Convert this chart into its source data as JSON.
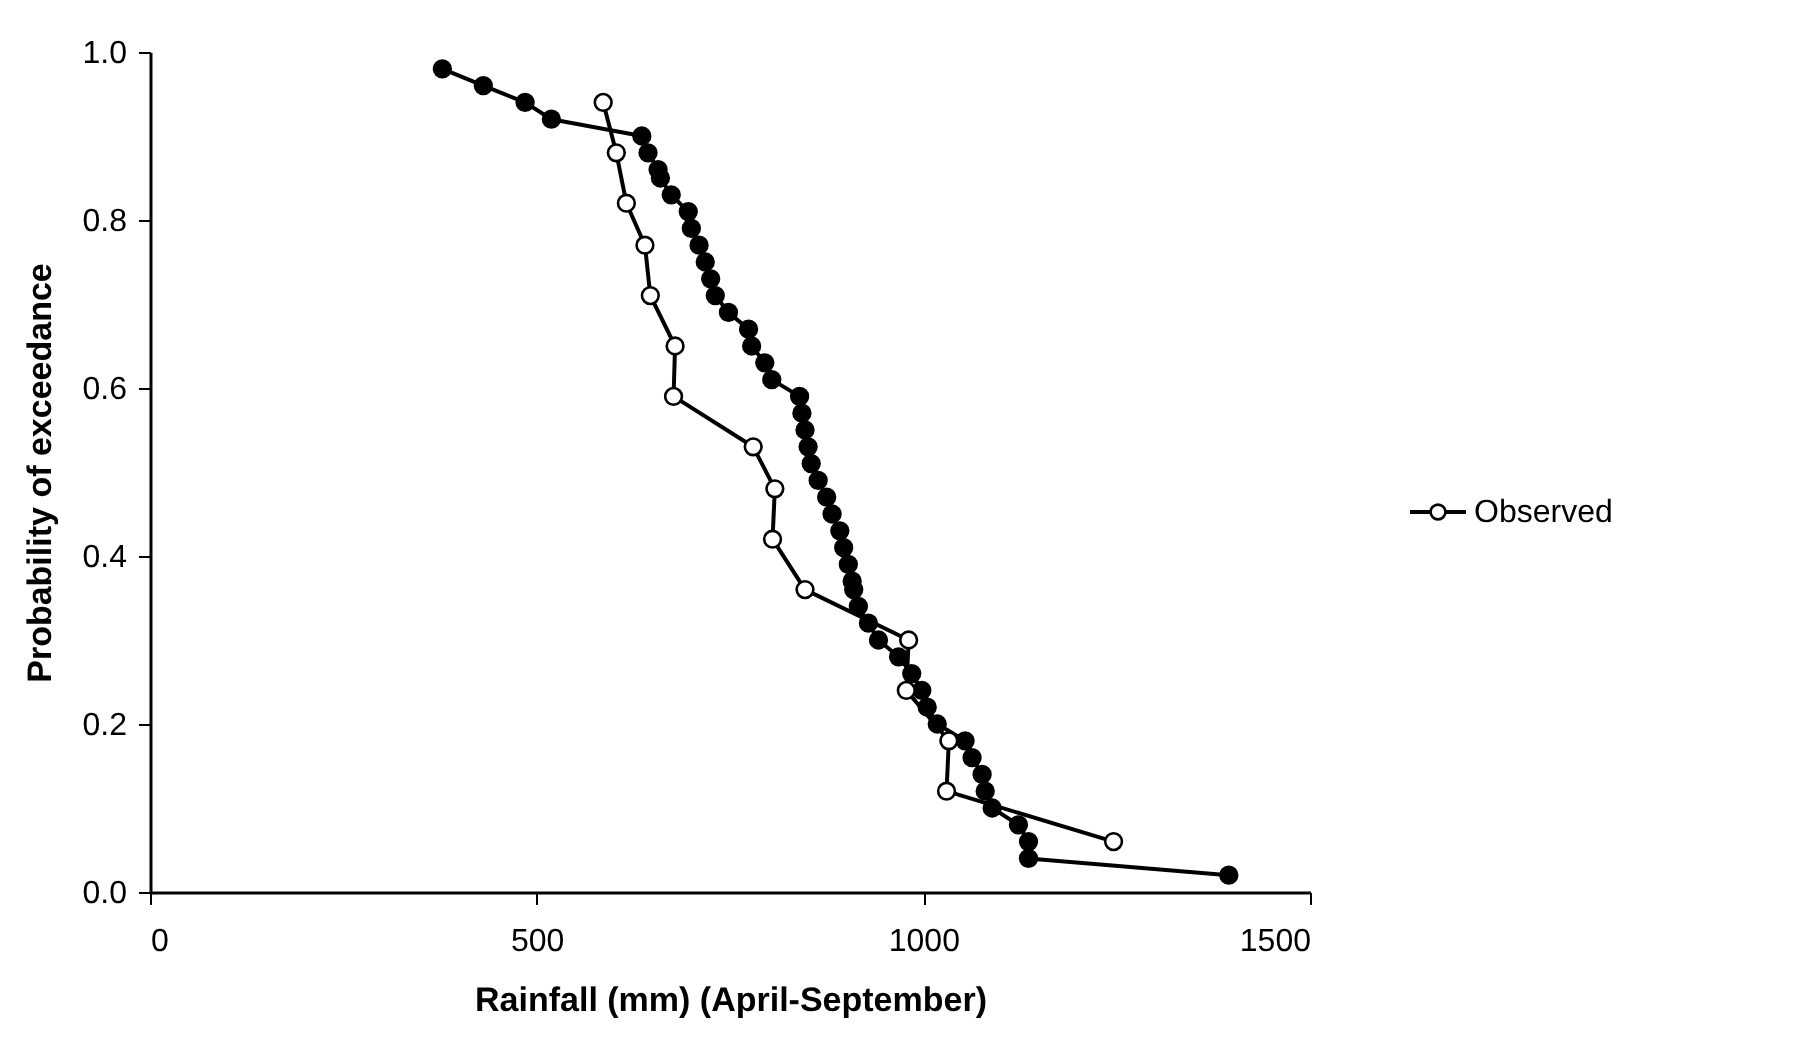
{
  "chart_data": {
    "type": "line",
    "xlabel": "Rainfall  (mm)  (April-September)",
    "ylabel": "Probability of exceedance",
    "xlim": [
      0,
      1500
    ],
    "xticks": [
      0,
      500,
      1000,
      1500
    ],
    "ylim": [
      0,
      1
    ],
    "yticks": [
      {
        "value": 0,
        "label": "0.0"
      },
      {
        "value": 0.2,
        "label": "0.2"
      },
      {
        "value": 0.4,
        "label": "0.4"
      },
      {
        "value": 0.6,
        "label": "0.6"
      },
      {
        "value": 0.8,
        "label": "0.8"
      },
      {
        "value": 1,
        "label": "1.0"
      }
    ],
    "grid": false,
    "legend": "right",
    "marker": "circle",
    "line_style": "solid",
    "series": [
      {
        "color": "#000000",
        "x": [
          378,
          431,
          485,
          519,
          636,
          644,
          657,
          660,
          674,
          696,
          700,
          710,
          718,
          725,
          731,
          748,
          774,
          778,
          795,
          804,
          840,
          843,
          847,
          851,
          855,
          864,
          875,
          882,
          892,
          897,
          903,
          908,
          910,
          916,
          929,
          942,
          968,
          985,
          998,
          1005,
          1018,
          1054,
          1063,
          1076,
          1080,
          1089,
          1123,
          1136,
          1136,
          1395
        ],
        "values": [
          0.98,
          0.96,
          0.94,
          0.92,
          0.9,
          0.88,
          0.86,
          0.85,
          0.83,
          0.81,
          0.79,
          0.77,
          0.75,
          0.73,
          0.71,
          0.69,
          0.67,
          0.65,
          0.63,
          0.61,
          0.59,
          0.57,
          0.55,
          0.53,
          0.51,
          0.49,
          0.47,
          0.45,
          0.43,
          0.41,
          0.39,
          0.37,
          0.36,
          0.34,
          0.32,
          0.3,
          0.28,
          0.26,
          0.24,
          0.22,
          0.2,
          0.18,
          0.16,
          0.14,
          0.12,
          0.1,
          0.08,
          0.06,
          0.04,
          0.02
        ]
      },
      {
        "name": "Observed",
        "color": "#000000",
        "x": [
          586,
          603,
          616,
          640,
          647,
          679,
          677,
          780,
          808,
          805,
          847,
          981,
          978,
          1033,
          1030,
          1246
        ],
        "values": [
          0.94,
          0.88,
          0.82,
          0.77,
          0.71,
          0.65,
          0.59,
          0.53,
          0.48,
          0.42,
          0.36,
          0.3,
          0.24,
          0.18,
          0.12,
          0.06
        ]
      }
    ]
  }
}
